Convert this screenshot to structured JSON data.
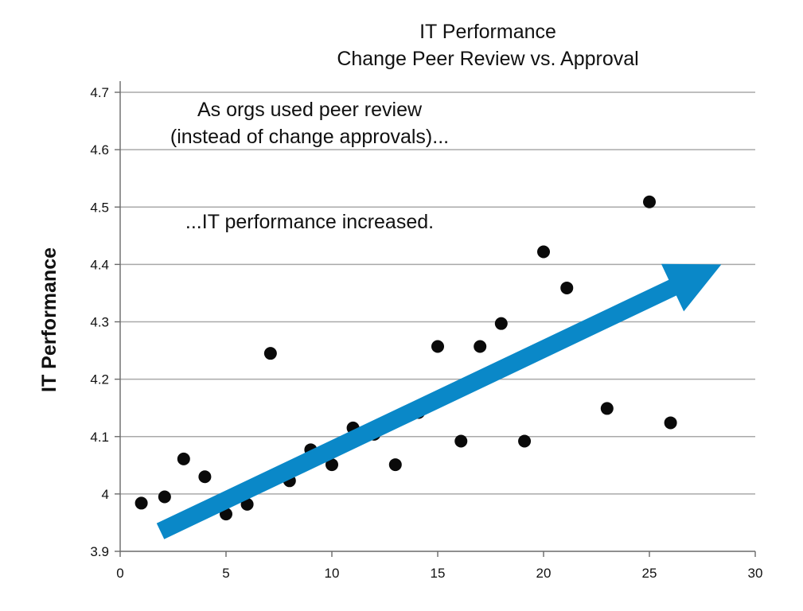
{
  "chart_data": {
    "type": "scatter",
    "title": [
      "IT Performance",
      "Change Peer Review vs. Approval"
    ],
    "xlabel": "",
    "ylabel": "IT Performance",
    "xlim": [
      0,
      30
    ],
    "ylim": [
      3.9,
      4.7
    ],
    "xticks": [
      0,
      5,
      10,
      15,
      20,
      25,
      30
    ],
    "yticks": [
      3.9,
      4,
      4.1,
      4.2,
      4.3,
      4.4,
      4.5,
      4.6,
      4.7
    ],
    "ytick_labels": [
      "3.9",
      "4",
      "4.1",
      "4.2",
      "4.3",
      "4.4",
      "4.5",
      "4.6",
      "4.7"
    ],
    "grid": "horizontal",
    "points": [
      {
        "x": 1,
        "y": 3.984
      },
      {
        "x": 2.1,
        "y": 3.995
      },
      {
        "x": 3,
        "y": 4.061
      },
      {
        "x": 4,
        "y": 4.03
      },
      {
        "x": 5,
        "y": 3.965
      },
      {
        "x": 6,
        "y": 3.982
      },
      {
        "x": 7.1,
        "y": 4.245
      },
      {
        "x": 8,
        "y": 4.023
      },
      {
        "x": 9,
        "y": 4.077
      },
      {
        "x": 10,
        "y": 4.051
      },
      {
        "x": 11,
        "y": 4.115
      },
      {
        "x": 12,
        "y": 4.104
      },
      {
        "x": 13,
        "y": 4.051
      },
      {
        "x": 14.1,
        "y": 4.142
      },
      {
        "x": 15,
        "y": 4.257
      },
      {
        "x": 16.1,
        "y": 4.092
      },
      {
        "x": 17,
        "y": 4.257
      },
      {
        "x": 18,
        "y": 4.297
      },
      {
        "x": 19.1,
        "y": 4.092
      },
      {
        "x": 20,
        "y": 4.422
      },
      {
        "x": 21.1,
        "y": 4.359
      },
      {
        "x": 23,
        "y": 4.149
      },
      {
        "x": 25,
        "y": 4.509
      },
      {
        "x": 26,
        "y": 4.124
      }
    ],
    "trend_arrow": {
      "from": {
        "x": 1.9,
        "y": 3.935
      },
      "to": {
        "x": 28.4,
        "y": 4.4
      },
      "color": "#0a88c8"
    },
    "annotations": [
      "As orgs used peer review",
      "(instead of change approvals)...",
      "...IT performance increased."
    ],
    "colors": {
      "points": "#0a0a0a",
      "grid": "#a9a9a9",
      "axis": "#6a6a6a",
      "arrow": "#0a88c8"
    }
  }
}
